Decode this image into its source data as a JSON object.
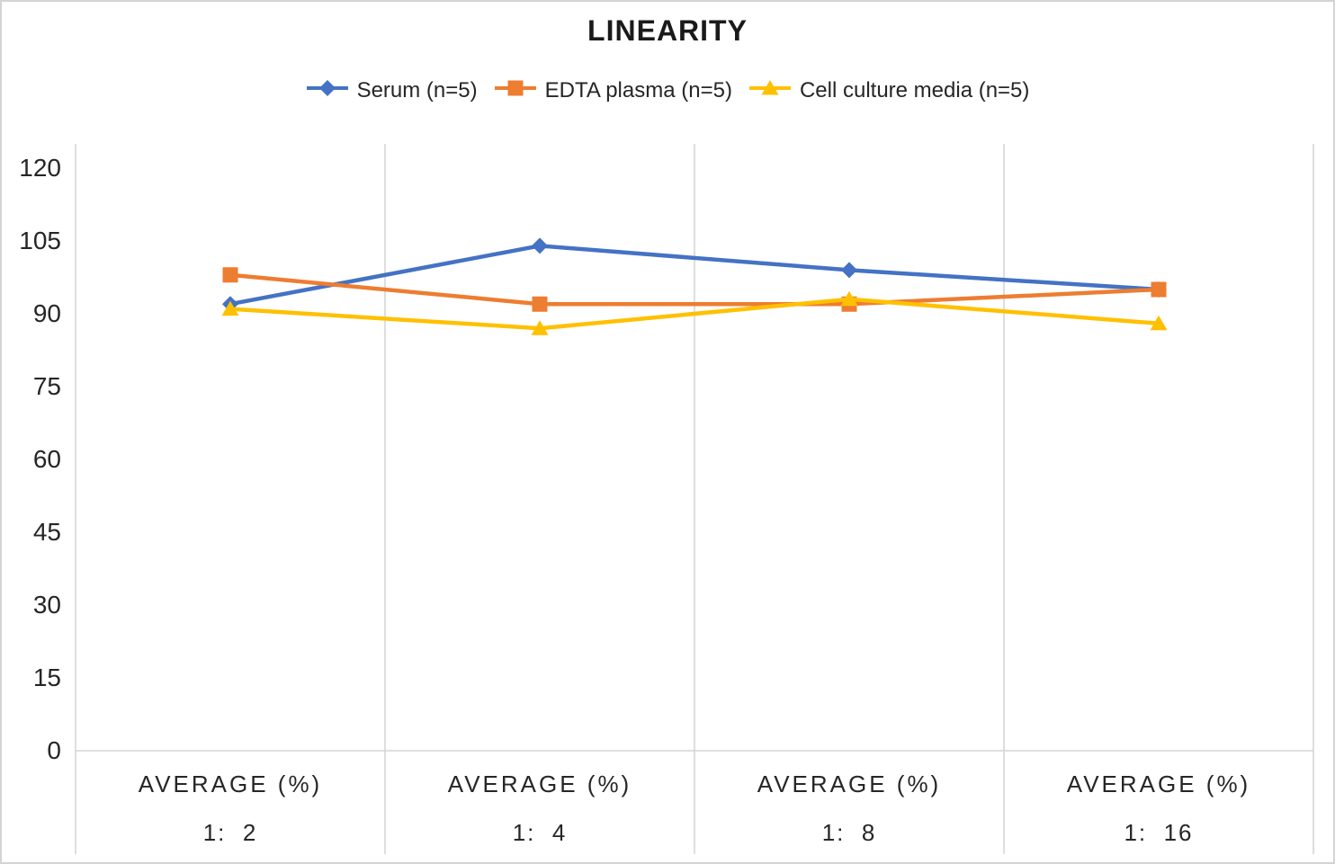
{
  "title": "LINEARITY",
  "chart_data": {
    "type": "line",
    "title": "LINEARITY",
    "yticks": [
      0,
      15,
      30,
      45,
      60,
      75,
      90,
      105,
      120
    ],
    "ylim": [
      0,
      125
    ],
    "grid": "vertical-only",
    "legend_position": "top",
    "x_group_label": "AVERAGE (%)",
    "categories": [
      {
        "group": "AVERAGE (%)",
        "dilution": "1:  2"
      },
      {
        "group": "AVERAGE (%)",
        "dilution": "1:  4"
      },
      {
        "group": "AVERAGE (%)",
        "dilution": "1:  8"
      },
      {
        "group": "AVERAGE (%)",
        "dilution": "1:  16"
      }
    ],
    "series": [
      {
        "name": "Serum (n=5)",
        "color": "#4472C4",
        "marker": "diamond",
        "values": [
          92,
          104,
          99,
          95
        ]
      },
      {
        "name": "EDTA plasma (n=5)",
        "color": "#ED7D31",
        "marker": "square",
        "values": [
          98,
          92,
          92,
          95
        ]
      },
      {
        "name": "Cell culture media (n=5)",
        "color": "#FFC000",
        "marker": "triangle",
        "values": [
          91,
          87,
          93,
          88
        ]
      }
    ],
    "colors": {
      "gridline": "#d6d6d6",
      "text": "#262626",
      "title": "#1a1a1a"
    }
  }
}
